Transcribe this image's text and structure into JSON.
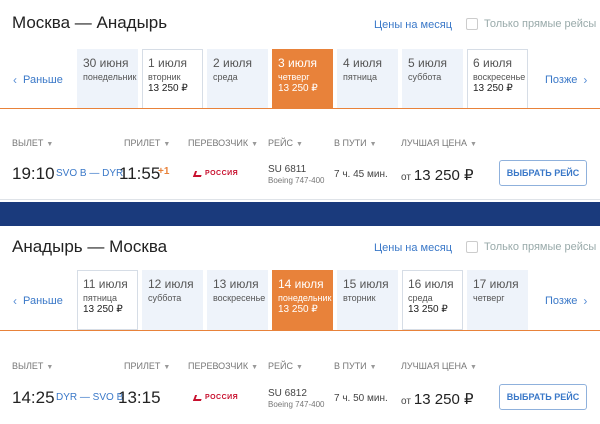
{
  "outbound": {
    "route_title": "Москва — Анадырь",
    "month_link": "Цены на месяц",
    "direct_only": "Только прямые рейсы",
    "nav_prev": "Раньше",
    "nav_next": "Позже",
    "dates": [
      {
        "date": "30 июня",
        "weekday": "понедельник",
        "price": "",
        "state": "plain"
      },
      {
        "date": "1 июля",
        "weekday": "вторник",
        "price": "13 250 ₽",
        "state": "bordered"
      },
      {
        "date": "2 июля",
        "weekday": "среда",
        "price": "",
        "state": "plain"
      },
      {
        "date": "3 июля",
        "weekday": "четверг",
        "price": "13 250 ₽",
        "state": "active"
      },
      {
        "date": "4 июля",
        "weekday": "пятница",
        "price": "",
        "state": "plain"
      },
      {
        "date": "5 июля",
        "weekday": "суббота",
        "price": "",
        "state": "plain"
      },
      {
        "date": "6 июля",
        "weekday": "воскресенье",
        "price": "13 250 ₽",
        "state": "bordered"
      }
    ],
    "headers": {
      "depart": "ВЫЛЕТ",
      "arrive": "ПРИЛЕТ",
      "carrier": "ПЕРЕВОЗЧИК",
      "flight": "РЕЙС",
      "duration": "В ПУТИ",
      "price": "ЛУЧШАЯ ЦЕНА"
    },
    "flight": {
      "depart_time": "19:10",
      "airports": "SVO B — DYR",
      "arrive_time": "11:55",
      "day_offset": "+1",
      "carrier": "РОССИЯ",
      "flight_no": "SU 6811",
      "aircraft": "Boeing 747-400",
      "duration": "7 ч. 45 мин.",
      "price_from": "от",
      "price": "13 250 ₽",
      "select_label": "ВЫБРАТЬ РЕЙС"
    }
  },
  "return": {
    "route_title": "Анадырь — Москва",
    "month_link": "Цены на месяц",
    "direct_only": "Только прямые рейсы",
    "nav_prev": "Раньше",
    "nav_next": "Позже",
    "dates": [
      {
        "date": "11 июля",
        "weekday": "пятница",
        "price": "13 250 ₽",
        "state": "bordered"
      },
      {
        "date": "12 июля",
        "weekday": "суббота",
        "price": "",
        "state": "plain"
      },
      {
        "date": "13 июля",
        "weekday": "воскресенье",
        "price": "",
        "state": "plain"
      },
      {
        "date": "14 июля",
        "weekday": "понедельник",
        "price": "13 250 ₽",
        "state": "active"
      },
      {
        "date": "15 июля",
        "weekday": "вторник",
        "price": "",
        "state": "plain"
      },
      {
        "date": "16 июля",
        "weekday": "среда",
        "price": "13 250 ₽",
        "state": "bordered"
      },
      {
        "date": "17 июля",
        "weekday": "четверг",
        "price": "",
        "state": "plain"
      }
    ],
    "headers": {
      "depart": "ВЫЛЕТ",
      "arrive": "ПРИЛЕТ",
      "carrier": "ПЕРЕВОЗЧИК",
      "flight": "РЕЙС",
      "duration": "В ПУТИ",
      "price": "ЛУЧШАЯ ЦЕНА"
    },
    "flight": {
      "depart_time": "14:25",
      "airports": "DYR — SVO B",
      "arrive_time": "13:15",
      "day_offset": "",
      "carrier": "РОССИЯ",
      "flight_no": "SU 6812",
      "aircraft": "Boeing 747-400",
      "duration": "7 ч. 50 мин.",
      "price_from": "от",
      "price": "13 250 ₽",
      "select_label": "ВЫБРАТЬ РЕЙС"
    }
  },
  "colors": {
    "accent": "#e8823a",
    "link": "#3a78c8",
    "band": "#1a3a7c",
    "carrier": "#c8102e"
  }
}
